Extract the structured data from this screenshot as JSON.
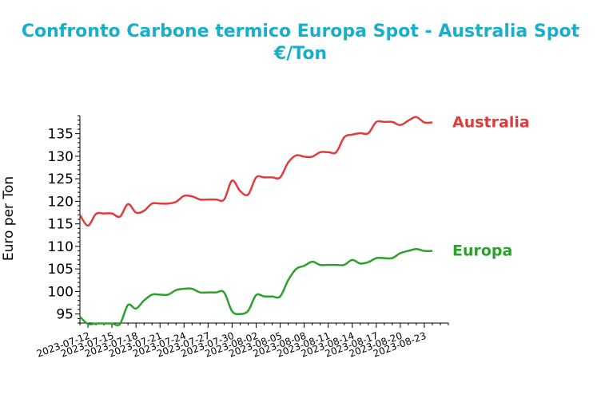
{
  "title_line1": "Confronto Carbone termico Europa Spot - Australia Spot",
  "title_line2": "€/Ton",
  "chart_data": {
    "type": "line",
    "title": "Confronto Carbone termico Europa Spot - Australia Spot €/Ton",
    "xlabel": "",
    "ylabel": "Euro per Ton",
    "xlim": [
      "2023-07-11",
      "2023-08-26"
    ],
    "ylim": [
      93,
      139
    ],
    "x_ticks": [
      "2023-07-12",
      "2023-07-15",
      "2023-07-18",
      "2023-07-21",
      "2023-07-24",
      "2023-07-27",
      "2023-07-30",
      "2023-08-02",
      "2023-08-05",
      "2023-08-08",
      "2023-08-11",
      "2023-08-14",
      "2023-08-17",
      "2023-08-20",
      "2023-08-23"
    ],
    "y_ticks": [
      95,
      100,
      105,
      110,
      115,
      120,
      125,
      130,
      135
    ],
    "legend": "inline-right",
    "series": [
      {
        "name": "Australia",
        "color": "#e03c3c",
        "points": [
          [
            "2023-07-11",
            117
          ],
          [
            "2023-07-12",
            114.6
          ],
          [
            "2023-07-13",
            117.2
          ],
          [
            "2023-07-14",
            117.3
          ],
          [
            "2023-07-15",
            117.3
          ],
          [
            "2023-07-16",
            116.6
          ],
          [
            "2023-07-17",
            119.4
          ],
          [
            "2023-07-18",
            117.5
          ],
          [
            "2023-07-19",
            117.9
          ],
          [
            "2023-07-20",
            119.5
          ],
          [
            "2023-07-21",
            119.5
          ],
          [
            "2023-07-22",
            119.5
          ],
          [
            "2023-07-23",
            119.9
          ],
          [
            "2023-07-24",
            121.2
          ],
          [
            "2023-07-25",
            121.1
          ],
          [
            "2023-07-26",
            120.4
          ],
          [
            "2023-07-27",
            120.4
          ],
          [
            "2023-07-28",
            120.4
          ],
          [
            "2023-07-29",
            120.4
          ],
          [
            "2023-07-30",
            124.6
          ],
          [
            "2023-07-31",
            122.3
          ],
          [
            "2023-08-01",
            121.5
          ],
          [
            "2023-08-02",
            125.3
          ],
          [
            "2023-08-03",
            125.3
          ],
          [
            "2023-08-04",
            125.3
          ],
          [
            "2023-08-05",
            125.3
          ],
          [
            "2023-08-06",
            128.6
          ],
          [
            "2023-08-07",
            130.2
          ],
          [
            "2023-08-08",
            129.9
          ],
          [
            "2023-08-09",
            129.9
          ],
          [
            "2023-08-10",
            130.9
          ],
          [
            "2023-08-11",
            130.9
          ],
          [
            "2023-08-12",
            130.9
          ],
          [
            "2023-08-13",
            134.2
          ],
          [
            "2023-08-14",
            134.8
          ],
          [
            "2023-08-15",
            135.1
          ],
          [
            "2023-08-16",
            135.1
          ],
          [
            "2023-08-17",
            137.6
          ],
          [
            "2023-08-18",
            137.6
          ],
          [
            "2023-08-19",
            137.6
          ],
          [
            "2023-08-20",
            136.9
          ],
          [
            "2023-08-21",
            137.9
          ],
          [
            "2023-08-22",
            138.7
          ],
          [
            "2023-08-23",
            137.5
          ],
          [
            "2023-08-24",
            137.5
          ]
        ]
      },
      {
        "name": "Europa",
        "color": "#2ca02c",
        "points": [
          [
            "2023-07-11",
            94.4
          ],
          [
            "2023-07-12",
            92.8
          ],
          [
            "2023-07-13",
            92.9
          ],
          [
            "2023-07-14",
            92.9
          ],
          [
            "2023-07-15",
            92.9
          ],
          [
            "2023-07-16",
            92.8
          ],
          [
            "2023-07-17",
            97
          ],
          [
            "2023-07-18",
            96.2
          ],
          [
            "2023-07-19",
            98
          ],
          [
            "2023-07-20",
            99.3
          ],
          [
            "2023-07-21",
            99.3
          ],
          [
            "2023-07-22",
            99.3
          ],
          [
            "2023-07-23",
            100.3
          ],
          [
            "2023-07-24",
            100.6
          ],
          [
            "2023-07-25",
            100.6
          ],
          [
            "2023-07-26",
            99.8
          ],
          [
            "2023-07-27",
            99.8
          ],
          [
            "2023-07-28",
            99.8
          ],
          [
            "2023-07-29",
            99.8
          ],
          [
            "2023-07-30",
            95.6
          ],
          [
            "2023-07-31",
            95
          ],
          [
            "2023-08-01",
            95.7
          ],
          [
            "2023-08-02",
            99.2
          ],
          [
            "2023-08-03",
            98.9
          ],
          [
            "2023-08-04",
            98.9
          ],
          [
            "2023-08-05",
            98.9
          ],
          [
            "2023-08-06",
            102.5
          ],
          [
            "2023-08-07",
            105
          ],
          [
            "2023-08-08",
            105.7
          ],
          [
            "2023-08-09",
            106.6
          ],
          [
            "2023-08-10",
            105.9
          ],
          [
            "2023-08-11",
            105.9
          ],
          [
            "2023-08-12",
            105.9
          ],
          [
            "2023-08-13",
            105.9
          ],
          [
            "2023-08-14",
            107
          ],
          [
            "2023-08-15",
            106.2
          ],
          [
            "2023-08-16",
            106.5
          ],
          [
            "2023-08-17",
            107.4
          ],
          [
            "2023-08-18",
            107.4
          ],
          [
            "2023-08-19",
            107.4
          ],
          [
            "2023-08-20",
            108.5
          ],
          [
            "2023-08-21",
            109
          ],
          [
            "2023-08-22",
            109.4
          ],
          [
            "2023-08-23",
            109
          ],
          [
            "2023-08-24",
            109
          ]
        ]
      }
    ]
  }
}
